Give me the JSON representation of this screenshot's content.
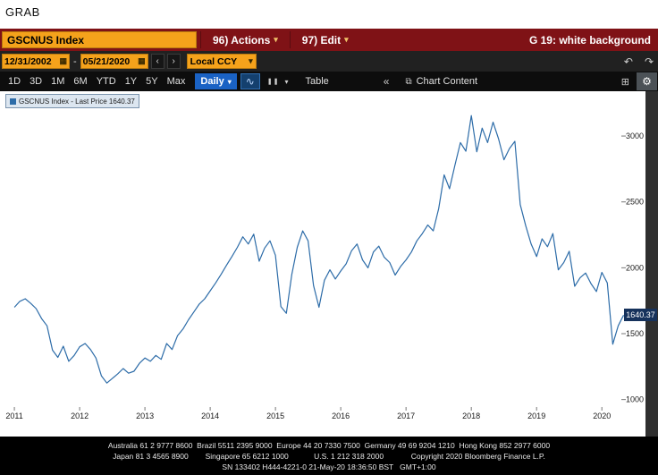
{
  "grab": {
    "title": "GRAB"
  },
  "toolbar": {
    "security": "GSCNUS Index",
    "actions_label": "96) Actions",
    "edit_label": "97) Edit",
    "panel_title": "G 19: white background"
  },
  "range_bar": {
    "start_date": "12/31/2002",
    "end_date": "05/21/2020",
    "separator": "-",
    "currency": "Local CCY"
  },
  "chart_toolbar": {
    "periods": [
      "1D",
      "3D",
      "1M",
      "6M",
      "YTD",
      "1Y",
      "5Y",
      "Max"
    ],
    "frequency": "Daily",
    "table_label": "Table",
    "chart_content_label": "Chart Content"
  },
  "icons": {
    "calendar": "▦",
    "prev": "‹",
    "next": "›",
    "caret_down": "▾",
    "undo": "↶",
    "redo": "↷",
    "chart_line": "∿",
    "bars": "❚❚",
    "collapse": "«",
    "chart_content": "⧉",
    "panel": "⊞",
    "gear": "⚙"
  },
  "colors": {
    "bloomberg_red": "#7f1216",
    "accent_amber": "#f5a21b",
    "daily_blue": "#1a62c4",
    "line_blue": "#2d6ca8",
    "last_price_bg": "#16325c"
  },
  "legend": "GSCNUS Index - Last Price 1640.37",
  "chart_data": {
    "type": "line",
    "title": "GSCNUS Index - Last Price",
    "xlabel": "",
    "ylabel": "",
    "x_ticks": [
      2011,
      2012,
      2013,
      2014,
      2015,
      2016,
      2017,
      2018,
      2019,
      2020
    ],
    "y_ticks": [
      1000,
      1500,
      2000,
      2500,
      3000
    ],
    "xlim": [
      2010.78,
      2020.86
    ],
    "ylim": [
      950,
      3340
    ],
    "grid": false,
    "legend_position": "top-left",
    "last_price": "1640.37",
    "series": [
      {
        "name": "GSCNUS Index - Last Price",
        "color": "#2d6ca8",
        "x_start": 2011,
        "x_step": 0.0833333,
        "values": [
          1700,
          1745,
          1765,
          1730,
          1690,
          1615,
          1560,
          1375,
          1320,
          1405,
          1290,
          1335,
          1400,
          1425,
          1380,
          1315,
          1180,
          1125,
          1160,
          1195,
          1235,
          1200,
          1215,
          1275,
          1315,
          1290,
          1335,
          1305,
          1425,
          1380,
          1485,
          1535,
          1605,
          1665,
          1725,
          1765,
          1825,
          1885,
          1950,
          2020,
          2085,
          2155,
          2235,
          2180,
          2255,
          2050,
          2150,
          2205,
          2095,
          1705,
          1655,
          1950,
          2155,
          2280,
          2205,
          1865,
          1700,
          1905,
          1985,
          1915,
          1975,
          2030,
          2130,
          2180,
          2060,
          2000,
          2120,
          2165,
          2080,
          2040,
          1945,
          2010,
          2060,
          2120,
          2205,
          2260,
          2325,
          2280,
          2450,
          2705,
          2600,
          2780,
          2950,
          2885,
          3155,
          2880,
          3060,
          2950,
          3105,
          2980,
          2820,
          2905,
          2960,
          2480,
          2320,
          2180,
          2085,
          2220,
          2160,
          2260,
          1985,
          2040,
          2125,
          1860,
          1925,
          1960,
          1880,
          1820,
          1965,
          1885,
          1420,
          1560,
          1640.37
        ]
      }
    ]
  },
  "footer": {
    "lines": [
      "Australia 61 2 9777 8600  Brazil 5511 2395 9000  Europe 44 20 7330 7500  Germany 49 69 9204 1210  Hong Kong 852 2977 6000",
      "Japan 81 3 4565 8900        Singapore 65 6212 1000            U.S. 1 212 318 2000             Copyright 2020 Bloomberg Finance L.P.",
      "SN 133402 H444-4221-0 21-May-20 18:36:50 BST   GMT+1:00"
    ]
  }
}
